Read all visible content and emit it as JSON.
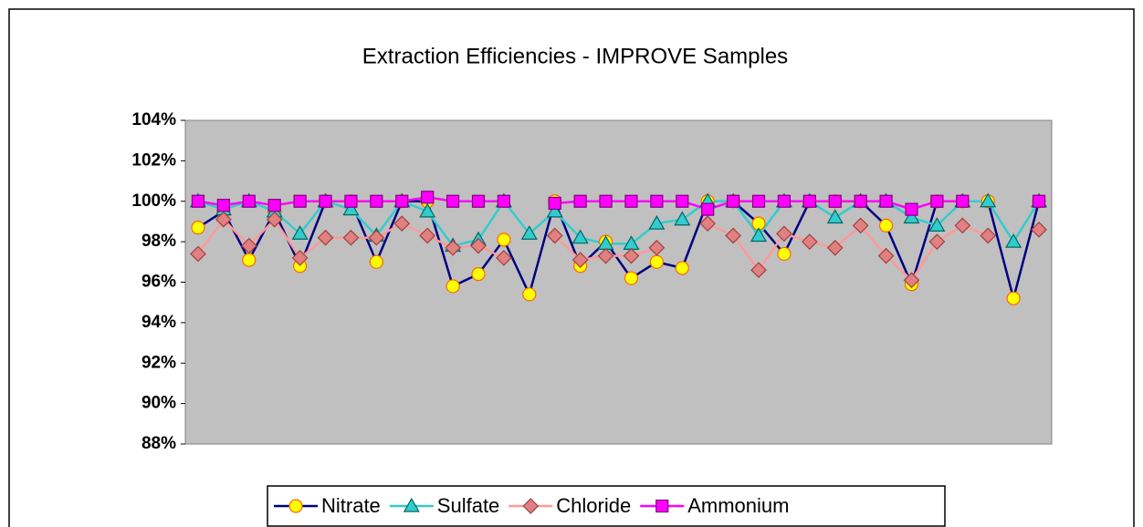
{
  "chart_data": {
    "type": "line",
    "title": "Extraction Efficiencies - IMPROVE Samples",
    "categories": [
      null,
      null,
      null,
      null,
      null,
      null,
      null,
      null,
      null,
      null,
      null,
      null,
      null,
      null,
      null,
      null,
      null,
      null,
      null,
      null,
      null,
      null,
      null,
      null,
      null,
      null,
      null,
      null,
      null,
      null,
      null,
      null,
      null,
      null
    ],
    "series": [
      {
        "name": "Nitrate",
        "color": "#000080",
        "marker": "circle",
        "marker_color": "#ffff00",
        "marker_edge": "#ff6600",
        "values": [
          98.7,
          99.5,
          97.1,
          99.5,
          96.8,
          100,
          100,
          97.0,
          100,
          100,
          95.8,
          96.4,
          98.1,
          95.4,
          100,
          96.8,
          98.0,
          96.2,
          97.0,
          96.7,
          100,
          100,
          98.9,
          97.4,
          100,
          100,
          100,
          98.8,
          95.9,
          100,
          100,
          100,
          95.2,
          100
        ]
      },
      {
        "name": "Sulfate",
        "color": "#33cccc",
        "marker": "triangle",
        "marker_color": "#33cccc",
        "marker_edge": "#006666",
        "values": [
          100,
          99.6,
          100,
          99.5,
          98.4,
          100,
          99.6,
          98.3,
          100,
          99.5,
          97.8,
          98.1,
          100,
          98.4,
          99.5,
          98.2,
          97.9,
          97.9,
          98.9,
          99.1,
          100,
          100,
          98.3,
          100,
          100,
          99.2,
          100,
          100,
          99.2,
          98.8,
          100,
          100,
          98.0,
          100
        ]
      },
      {
        "name": "Chloride",
        "color": "#ff9999",
        "marker": "diamond",
        "marker_color": "#e08080",
        "marker_edge": "#a04040",
        "values": [
          97.4,
          99.1,
          97.8,
          99.1,
          97.2,
          98.2,
          98.2,
          98.2,
          98.9,
          98.3,
          97.7,
          97.8,
          97.2,
          null,
          98.3,
          97.1,
          97.3,
          97.3,
          97.7,
          null,
          98.9,
          98.3,
          96.6,
          98.4,
          98.0,
          97.7,
          98.8,
          97.3,
          96.1,
          98.0,
          98.8,
          98.3,
          null,
          98.6
        ]
      },
      {
        "name": "Ammonium",
        "color": "#ff00ff",
        "marker": "square",
        "marker_color": "#ff00ff",
        "marker_edge": "#800080",
        "values": [
          100,
          99.8,
          100,
          99.8,
          100,
          100,
          100,
          100,
          100,
          100.2,
          100,
          100,
          100,
          null,
          99.9,
          100,
          100,
          100,
          100,
          100,
          99.6,
          100,
          100,
          100,
          100,
          100,
          100,
          100,
          99.6,
          100,
          100,
          null,
          null,
          100
        ]
      }
    ],
    "ylim": [
      88,
      104
    ],
    "yticks": [
      {
        "value": 88,
        "label": "88%"
      },
      {
        "value": 90,
        "label": "90%"
      },
      {
        "value": 92,
        "label": "92%"
      },
      {
        "value": 94,
        "label": "94%"
      },
      {
        "value": 96,
        "label": "96%"
      },
      {
        "value": 98,
        "label": "98%"
      },
      {
        "value": 100,
        "label": "100%"
      },
      {
        "value": 102,
        "label": "102%"
      },
      {
        "value": 104,
        "label": "104%"
      }
    ],
    "legend": "bottom"
  }
}
